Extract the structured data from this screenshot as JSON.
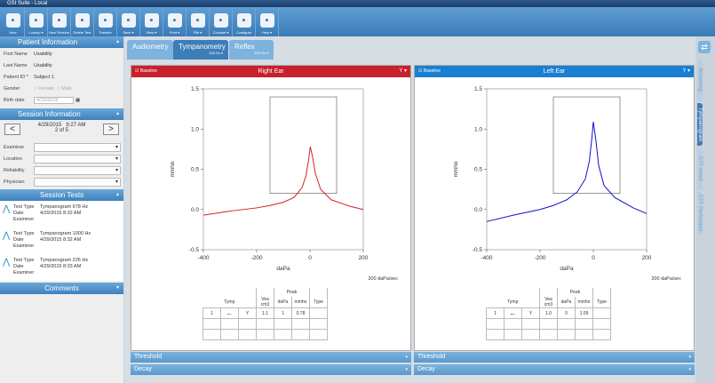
{
  "window_title": "GSI Suite - Local",
  "toolbar": [
    {
      "label": "New",
      "icon": "new-patient-icon"
    },
    {
      "label": "Lookup ▾",
      "icon": "lookup-icon"
    },
    {
      "label": "New Session",
      "icon": "new-session-icon"
    },
    {
      "label": "Delete Test",
      "icon": "trash-icon"
    },
    {
      "label": "Transfer",
      "icon": "transfer-icon"
    },
    {
      "label": "Save ▾",
      "icon": "save-icon"
    },
    {
      "label": "View ▾",
      "icon": "document-icon"
    },
    {
      "label": "Print ▾",
      "icon": "print-icon"
    },
    {
      "label": "File ▾",
      "icon": "folder-icon"
    },
    {
      "label": "Counsel ▾",
      "icon": "counsel-icon"
    },
    {
      "label": "Configure",
      "icon": "gear-icon"
    },
    {
      "label": "Help ▾",
      "icon": "help-icon"
    }
  ],
  "patient": {
    "title": "Patient Information",
    "first_name_label": "First Name",
    "first_name": "Usability",
    "last_name_label": "Last Name",
    "last_name": "Usability",
    "id_label": "Patient ID *",
    "id": "Subject 1",
    "gender_label": "Gender",
    "female": "Female",
    "male": "Male",
    "birth_label": "Birth date",
    "birth": "4/29/2015"
  },
  "session": {
    "title": "Session Information",
    "datetime": "4/29/2015   9:27 AM",
    "count": "2 of 5",
    "prev": "<",
    "next": ">",
    "fields": [
      "Examiner",
      "Location",
      "Reliability",
      "Physician"
    ]
  },
  "session_tests": {
    "title": "Session Tests",
    "type_label": "Test Type",
    "date_label": "Date",
    "examiner_label": "Examiner",
    "items": [
      {
        "type": "Tympanogram 678 Hz",
        "date": "4/29/2015 8:32 AM"
      },
      {
        "type": "Tympanogram 1000 Hz",
        "date": "4/29/2015 8:32 AM"
      },
      {
        "type": "Tympanogram 226 Hz",
        "date": "4/29/2015 8:33 AM"
      }
    ]
  },
  "comments": "Comments",
  "tabs": [
    {
      "label": "Audiometry",
      "sub": ""
    },
    {
      "label": "Tympanometry",
      "sub": "226 Hz ▾"
    },
    {
      "label": "Reflex",
      "sub": "226 Hz ▾"
    }
  ],
  "right_tabs": [
    "Screening",
    "Tympanogram",
    "ETF Intact",
    "ETF Perforated"
  ],
  "colors": {
    "right": "#c8202c",
    "left": "#1a7fd0",
    "right_curve": "#d42020",
    "left_curve": "#1010c8"
  },
  "chart_data": [
    {
      "type": "line",
      "title": "Right Ear",
      "baseline": "Baseline",
      "y_menu": "Y ▾",
      "xlabel": "daPa",
      "ylabel": "mmho",
      "rate": "200 daPa/sec",
      "xlim": [
        -400,
        200
      ],
      "ylim": [
        -0.5,
        1.5
      ],
      "xticks": [
        "-400",
        "-200",
        "0",
        "200"
      ],
      "yticks": [
        "-0.5",
        "0.0",
        "0.5",
        "1.0",
        "1.5"
      ],
      "box": {
        "x": [
          -150,
          100
        ],
        "y": [
          0.2,
          1.4
        ]
      },
      "x": [
        -400,
        -300,
        -200,
        -150,
        -100,
        -60,
        -30,
        -15,
        -5,
        1,
        10,
        20,
        40,
        80,
        150,
        200
      ],
      "y": [
        -0.07,
        -0.02,
        0.02,
        0.05,
        0.09,
        0.15,
        0.27,
        0.42,
        0.62,
        0.78,
        0.65,
        0.45,
        0.25,
        0.12,
        0.04,
        0.0
      ],
      "table": {
        "peak": "Peak",
        "headers": [
          "Tymp",
          "Vea cm3",
          "daPa",
          "mmho",
          "Type"
        ],
        "row": [
          "1",
          "←",
          "Y",
          "1.1",
          "1",
          "0.78",
          ""
        ]
      }
    },
    {
      "type": "line",
      "title": "Left Ear",
      "baseline": "Baseline",
      "y_menu": "Y ▾",
      "xlabel": "daPa",
      "ylabel": "mmho",
      "rate": "200 daPa/sec",
      "xlim": [
        -400,
        200
      ],
      "ylim": [
        -0.5,
        1.5
      ],
      "xticks": [
        "-400",
        "-200",
        "0",
        "200"
      ],
      "yticks": [
        "-0.5",
        "0.0",
        "0.5",
        "1.0",
        "1.5"
      ],
      "box": {
        "x": [
          -150,
          100
        ],
        "y": [
          0.2,
          1.4
        ]
      },
      "x": [
        -400,
        -300,
        -200,
        -150,
        -100,
        -60,
        -30,
        -15,
        -5,
        0,
        10,
        20,
        40,
        80,
        150,
        200
      ],
      "y": [
        -0.15,
        -0.07,
        0.0,
        0.05,
        0.12,
        0.22,
        0.38,
        0.6,
        0.9,
        1.09,
        0.85,
        0.55,
        0.3,
        0.15,
        0.02,
        -0.05
      ],
      "table": {
        "peak": "Peak",
        "headers": [
          "Tymp",
          "Vea cm3",
          "daPa",
          "mmho",
          "Type"
        ],
        "row": [
          "1",
          "←",
          "Y",
          "1.0",
          "0",
          "1.09",
          ""
        ]
      }
    }
  ],
  "threshold": "Threshold",
  "decay": "Decay"
}
